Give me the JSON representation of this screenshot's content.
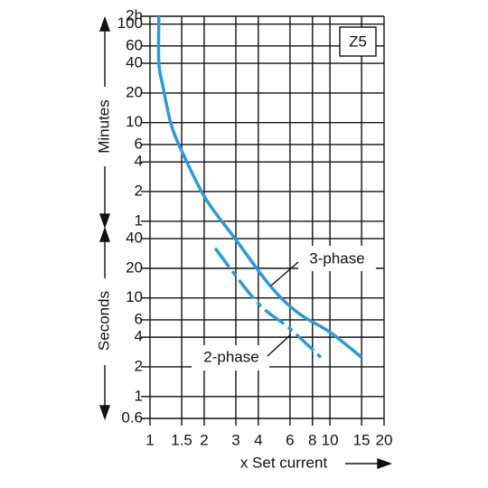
{
  "chart_data": {
    "type": "line",
    "x_label": "x Set current",
    "y_label_upper": "Minutes",
    "y_label_lower": "Seconds",
    "annotation": "Z5",
    "log_x": true,
    "log_y": true,
    "grid": true,
    "xlim": [
      1,
      20
    ],
    "xticks": [
      1,
      1.5,
      2,
      3,
      4,
      6,
      8,
      10,
      15,
      20
    ],
    "ylim": [
      0.6,
      7200
    ],
    "yticks": [
      {
        "value": 7200,
        "label": "2h"
      },
      {
        "value": 6000,
        "label": "100"
      },
      {
        "value": 3600,
        "label": "60"
      },
      {
        "value": 2400,
        "label": "40"
      },
      {
        "value": 1200,
        "label": "20"
      },
      {
        "value": 600,
        "label": "10"
      },
      {
        "value": 360,
        "label": "6"
      },
      {
        "value": 240,
        "label": "4"
      },
      {
        "value": 120,
        "label": "2"
      },
      {
        "value": 60,
        "label": "1"
      },
      40,
      20,
      10,
      6,
      4,
      2,
      1,
      0.6
    ],
    "series": [
      {
        "name": "3-phase",
        "color": "#2a9ad8",
        "dashed": false,
        "x": [
          1.12,
          1.12,
          1.18,
          1.32,
          1.57,
          2.05,
          2.97,
          4.7,
          6.7,
          10,
          15
        ],
        "values": [
          7200,
          2400,
          1400,
          550,
          260,
          100,
          40,
          13,
          7,
          4.5,
          2.5
        ]
      },
      {
        "name": "2-phase",
        "color": "#2a9ad8",
        "dashed": true,
        "x": [
          2.3,
          3.95,
          5.9,
          8.9
        ],
        "values": [
          32,
          9,
          5,
          2.5
        ]
      }
    ]
  }
}
